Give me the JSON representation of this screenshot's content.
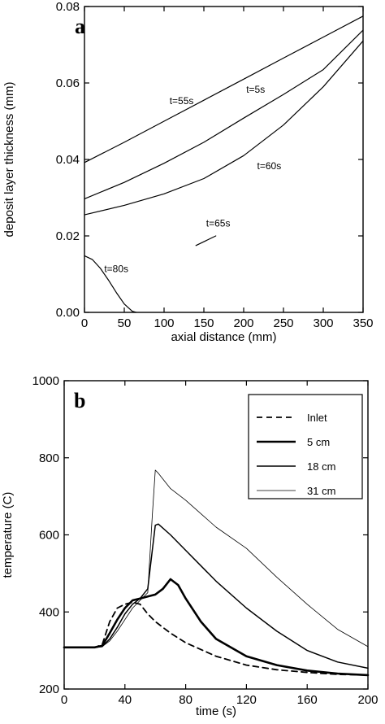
{
  "chart_data": [
    {
      "type": "line",
      "panel": "a",
      "xlabel": "axial distance (mm)",
      "ylabel": "deposit layer thickness (mm)",
      "xlim": [
        0,
        350
      ],
      "ylim": [
        0,
        0.08
      ],
      "xticks": [
        0,
        50,
        100,
        150,
        200,
        250,
        300,
        350
      ],
      "yticks": [
        0.0,
        0.02,
        0.04,
        0.06,
        0.08
      ],
      "ytick_labels": [
        "0.00",
        "0.02",
        "0.04",
        "0.06",
        "0.08"
      ],
      "grid": false,
      "series": [
        {
          "name": "t=5s",
          "x": [
            0,
            50,
            100,
            150,
            200,
            250,
            300,
            350
          ],
          "y": [
            0.0392,
            0.0445,
            0.05,
            0.0555,
            0.061,
            0.0665,
            0.072,
            0.0775
          ]
        },
        {
          "name": "t=55s",
          "x": [
            0,
            50,
            100,
            150,
            200,
            250,
            300,
            350
          ],
          "y": [
            0.0297,
            0.034,
            0.039,
            0.0445,
            0.0508,
            0.057,
            0.0635,
            0.0738
          ]
        },
        {
          "name": "t=60s",
          "x": [
            0,
            50,
            100,
            150,
            200,
            250,
            300,
            350
          ],
          "y": [
            0.0255,
            0.028,
            0.031,
            0.035,
            0.041,
            0.049,
            0.059,
            0.071
          ]
        },
        {
          "name": "t=65s",
          "x": [
            140,
            165
          ],
          "y": [
            0.0175,
            0.02
          ]
        },
        {
          "name": "t=80s",
          "x": [
            0,
            10,
            20,
            30,
            40,
            50,
            60,
            65
          ],
          "y": [
            0.0148,
            0.0138,
            0.0115,
            0.0085,
            0.0052,
            0.0022,
            0.0003,
            0.0
          ]
        }
      ],
      "annotations": [
        {
          "text": "t=5s",
          "x": 215,
          "y": 0.0575
        },
        {
          "text": "t=55s",
          "x": 122,
          "y": 0.0545
        },
        {
          "text": "t=60s",
          "x": 232,
          "y": 0.0375
        },
        {
          "text": "t=65s",
          "x": 168,
          "y": 0.0225
        },
        {
          "text": "t=80s",
          "x": 40,
          "y": 0.0105
        }
      ]
    },
    {
      "type": "line",
      "panel": "b",
      "xlabel": "time (s)",
      "ylabel": "temperature (C)",
      "xlim": [
        0,
        200
      ],
      "ylim": [
        200,
        1000
      ],
      "xticks": [
        0,
        40,
        80,
        120,
        160,
        200
      ],
      "yticks": [
        200,
        400,
        600,
        800,
        1000
      ],
      "grid": false,
      "legend_position": "top-right",
      "series": [
        {
          "name": "Inlet",
          "style": "dashed",
          "x": [
            0,
            20,
            25,
            30,
            35,
            40,
            45,
            50,
            55,
            60,
            70,
            80,
            100,
            120,
            140,
            160,
            180,
            200
          ],
          "y": [
            308,
            308,
            315,
            375,
            410,
            420,
            425,
            420,
            395,
            375,
            345,
            320,
            285,
            262,
            250,
            243,
            238,
            236
          ]
        },
        {
          "name": "5 cm",
          "style": "thick",
          "x": [
            0,
            20,
            25,
            30,
            35,
            40,
            45,
            50,
            55,
            60,
            65,
            70,
            75,
            80,
            90,
            100,
            120,
            140,
            160,
            180,
            200
          ],
          "y": [
            308,
            308,
            312,
            345,
            380,
            410,
            430,
            435,
            440,
            445,
            460,
            485,
            470,
            435,
            375,
            330,
            285,
            262,
            248,
            240,
            236
          ]
        },
        {
          "name": "18 cm",
          "style": "medium",
          "x": [
            0,
            20,
            25,
            30,
            35,
            40,
            45,
            50,
            55,
            58,
            60,
            62,
            70,
            80,
            100,
            120,
            140,
            160,
            180,
            200
          ],
          "y": [
            308,
            308,
            310,
            330,
            360,
            395,
            420,
            435,
            460,
            560,
            625,
            628,
            600,
            560,
            480,
            410,
            350,
            300,
            270,
            254
          ]
        },
        {
          "name": "31 cm",
          "style": "thin",
          "x": [
            0,
            20,
            25,
            30,
            35,
            40,
            45,
            50,
            55,
            58,
            60,
            62,
            70,
            80,
            100,
            120,
            140,
            160,
            180,
            200
          ],
          "y": [
            308,
            308,
            310,
            325,
            350,
            380,
            410,
            430,
            450,
            650,
            768,
            760,
            720,
            690,
            620,
            565,
            490,
            420,
            355,
            310
          ]
        }
      ]
    }
  ],
  "panels": {
    "a": {
      "letter": "a"
    },
    "b": {
      "letter": "b"
    }
  }
}
